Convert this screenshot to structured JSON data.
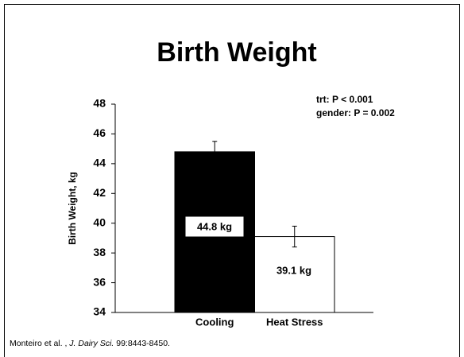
{
  "chart_data": {
    "type": "bar",
    "title": "Birth Weight",
    "categories": [
      "Cooling",
      "Heat Stress"
    ],
    "values": [
      44.8,
      39.1
    ],
    "value_labels": [
      "44.8 kg",
      "39.1 kg"
    ],
    "errors": [
      0.7,
      0.7
    ],
    "colors": [
      "#000000",
      "#ffffff"
    ],
    "ylabel": "Birth Weight, kg",
    "ylim": [
      34,
      48
    ],
    "yticks": [
      34,
      36,
      38,
      40,
      42,
      44,
      46,
      48
    ],
    "annotations": [
      "trt: P < 0.001",
      "gender: P = 0.002"
    ],
    "source": [
      "Monteiro et al. , ",
      "J. Dairy Sci.",
      " 99:8443-8450."
    ]
  }
}
